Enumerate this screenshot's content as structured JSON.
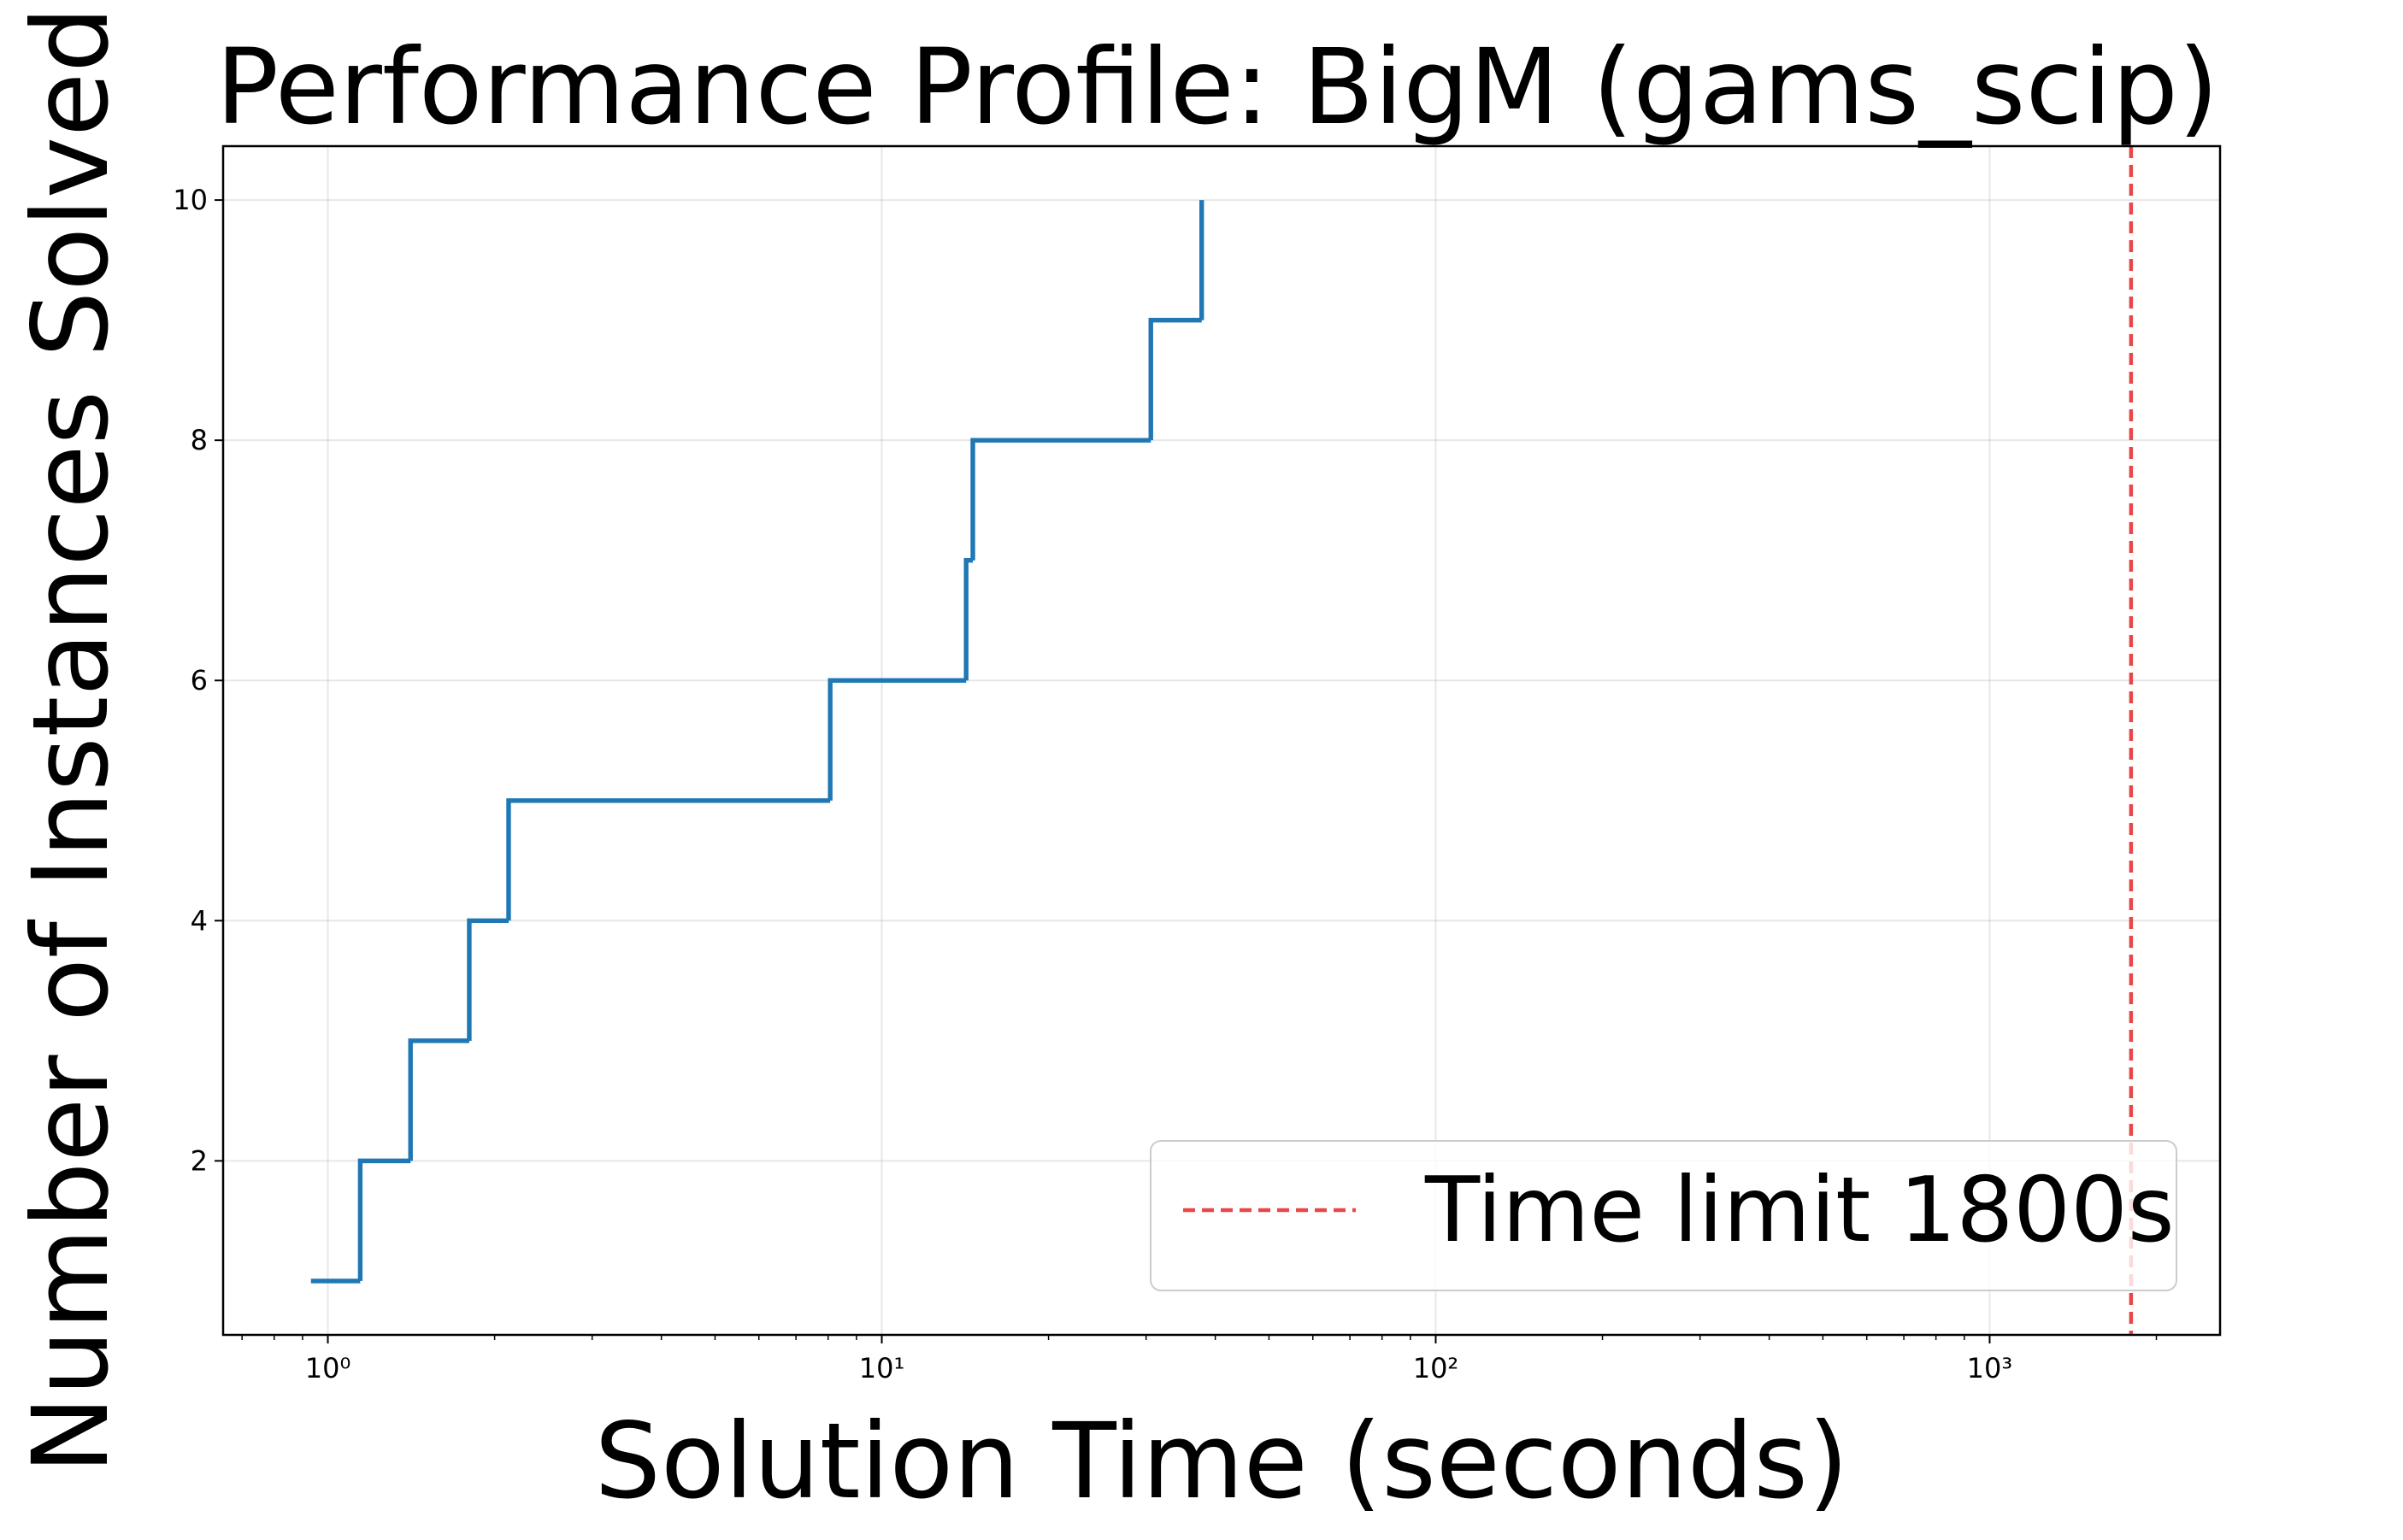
{
  "chart_data": {
    "type": "step",
    "title": "Performance Profile: BigM (gams_scip)",
    "x_label": "Solution Time (seconds)",
    "y_label": "Number of Instances Solved",
    "x_scale": "log",
    "step_where": "post",
    "grid": true,
    "legend_loc": "lower right",
    "series": [
      {
        "color": "#1f77b4",
        "x": [
          0.932,
          1.144,
          1.41,
          1.8,
          2.12,
          8.07,
          14.2,
          14.6,
          30.6,
          37.8
        ],
        "values": [
          1,
          2,
          3,
          4,
          5,
          6,
          7,
          8,
          9,
          10
        ]
      }
    ],
    "reference_lines": [
      {
        "x": 1800,
        "name": "Time limit 1800s",
        "color": "#e8474a",
        "style": "dashed"
      }
    ],
    "xlim": [
      0.647,
      2606
    ],
    "ylim": [
      0.551,
      10.449
    ],
    "xticks": [
      {
        "value": 1,
        "label": "10⁰"
      },
      {
        "value": 10,
        "label": "10¹"
      },
      {
        "value": 100,
        "label": "10²"
      },
      {
        "value": 1000,
        "label": "10³"
      }
    ],
    "yticks": [
      2,
      4,
      6,
      8,
      10
    ]
  }
}
